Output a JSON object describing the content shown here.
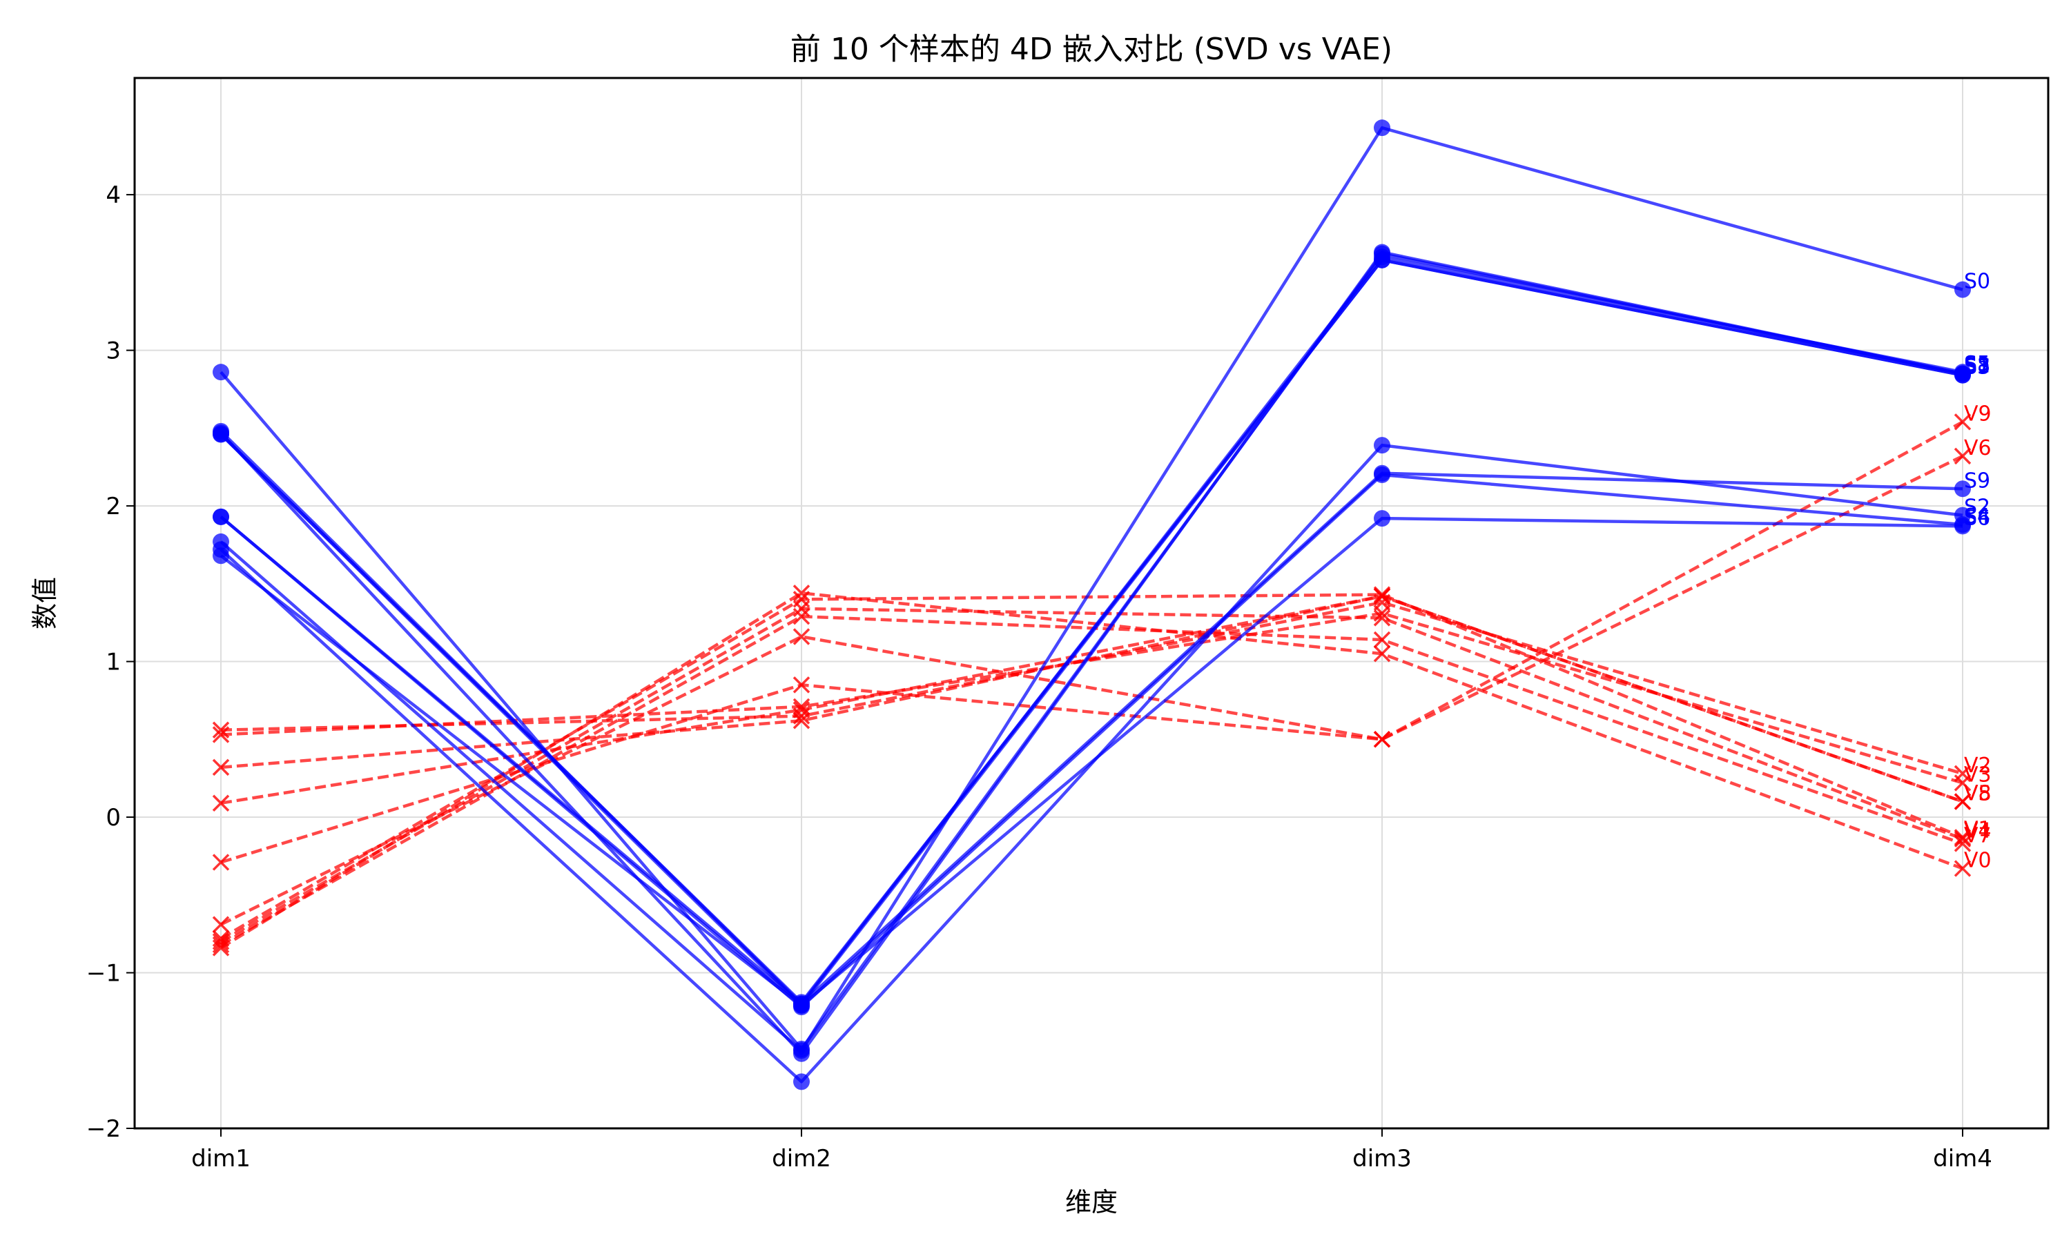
{
  "chart_data": {
    "type": "line",
    "title": "前 10 个样本的 4D 嵌入对比 (SVD vs VAE)",
    "xlabel": "维度",
    "ylabel": "数值",
    "categories": [
      "dim1",
      "dim2",
      "dim3",
      "dim4"
    ],
    "ylim": [
      -2,
      4.75
    ],
    "yticks": [
      -2,
      -1,
      0,
      1,
      2,
      3,
      4
    ],
    "ytick_labels": [
      "−2",
      "−1",
      "0",
      "1",
      "2",
      "3",
      "4"
    ],
    "grid": true,
    "colors": {
      "svd": "#0000ff",
      "vae": "#ff0000",
      "grid": "#dddddd",
      "axis": "#000000"
    },
    "series": [
      {
        "name": "S0",
        "group": "svd",
        "values": [
          1.77,
          -1.5,
          4.43,
          3.39
        ]
      },
      {
        "name": "S1",
        "group": "svd",
        "values": [
          2.47,
          -1.52,
          3.63,
          2.85
        ]
      },
      {
        "name": "S2",
        "group": "svd",
        "values": [
          1.72,
          -1.7,
          2.39,
          1.94
        ]
      },
      {
        "name": "S3",
        "group": "svd",
        "values": [
          2.46,
          -1.19,
          3.58,
          2.84
        ]
      },
      {
        "name": "S4",
        "group": "svd",
        "values": [
          1.93,
          -1.22,
          2.2,
          1.88
        ]
      },
      {
        "name": "S5",
        "group": "svd",
        "values": [
          2.48,
          -1.2,
          3.6,
          2.86
        ]
      },
      {
        "name": "S6",
        "group": "svd",
        "values": [
          1.68,
          -1.21,
          1.92,
          1.87
        ]
      },
      {
        "name": "S7",
        "group": "svd",
        "values": [
          2.46,
          -1.21,
          3.58,
          2.84
        ]
      },
      {
        "name": "S8",
        "group": "svd",
        "values": [
          2.86,
          -1.49,
          3.62,
          2.85
        ]
      },
      {
        "name": "S9",
        "group": "svd",
        "values": [
          1.93,
          -1.2,
          2.21,
          2.11
        ]
      },
      {
        "name": "V0",
        "group": "vae",
        "values": [
          -0.84,
          1.44,
          1.05,
          -0.33
        ]
      },
      {
        "name": "V1",
        "group": "vae",
        "values": [
          -0.78,
          1.4,
          1.43,
          -0.13
        ]
      },
      {
        "name": "V2",
        "group": "vae",
        "values": [
          0.56,
          0.65,
          1.38,
          0.28
        ]
      },
      {
        "name": "V3",
        "group": "vae",
        "values": [
          0.53,
          0.71,
          1.31,
          0.22
        ]
      },
      {
        "name": "V4",
        "group": "vae",
        "values": [
          -0.8,
          1.34,
          1.28,
          -0.14
        ]
      },
      {
        "name": "V5",
        "group": "vae",
        "values": [
          0.09,
          0.69,
          1.42,
          0.1
        ]
      },
      {
        "name": "V6",
        "group": "vae",
        "values": [
          -0.29,
          0.85,
          0.5,
          2.32
        ]
      },
      {
        "name": "V7",
        "group": "vae",
        "values": [
          -0.82,
          1.29,
          1.14,
          -0.17
        ]
      },
      {
        "name": "V8",
        "group": "vae",
        "values": [
          0.32,
          0.62,
          1.42,
          0.1
        ]
      },
      {
        "name": "V9",
        "group": "vae",
        "values": [
          -0.69,
          1.16,
          0.5,
          2.54
        ]
      }
    ]
  }
}
